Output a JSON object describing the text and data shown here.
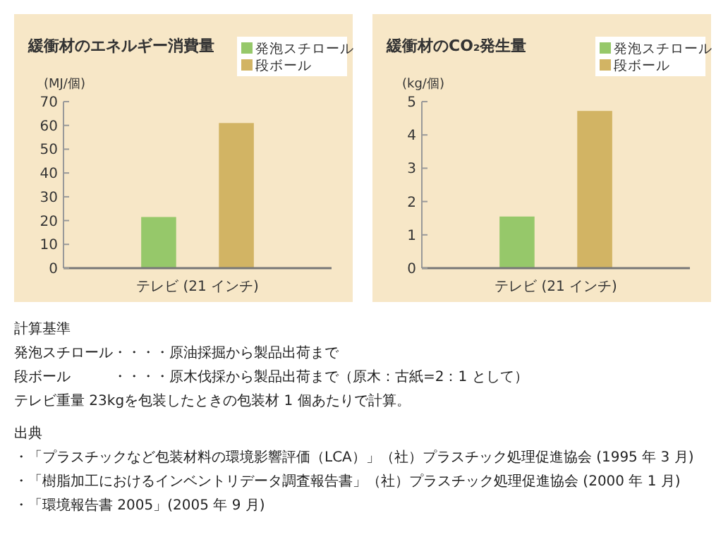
{
  "chart_data": [
    {
      "type": "bar",
      "title": "緩衝材のエネルギー消費量",
      "ylabel": "(MJ/個)",
      "categories": [
        "テレビ (21 インチ)"
      ],
      "series": [
        {
          "name": "発泡スチロール",
          "color": "#96c86a",
          "values": [
            21.5
          ]
        },
        {
          "name": "段ボール",
          "color": "#d2b464",
          "values": [
            61
          ]
        }
      ],
      "ylim": [
        0,
        70
      ],
      "yticks": [
        0,
        10,
        20,
        30,
        40,
        50,
        60,
        70
      ],
      "grid": false,
      "legend": "top right"
    },
    {
      "type": "bar",
      "title": "緩衝材のCO₂発生量",
      "ylabel": "(kg/個)",
      "categories": [
        "テレビ (21 インチ)"
      ],
      "series": [
        {
          "name": "発泡スチロール",
          "color": "#96c86a",
          "values": [
            1.55
          ]
        },
        {
          "name": "段ボール",
          "color": "#d2b464",
          "values": [
            4.72
          ]
        }
      ],
      "ylim": [
        0,
        5
      ],
      "yticks": [
        0,
        1,
        2,
        3,
        4,
        5
      ],
      "grid": false,
      "legend": "top right"
    },
    {
      "type": "other",
      "annotations": [
        "計算基準",
        "発泡スチロール・・・・原油採掘から製品出荷まで",
        "段ボール　　　・・・・原木伐採から製品出荷まで（原木：古紙=2：1 として）",
        "テレビ重量 23kgを包装したときの包装材 1 個あたりで計算。",
        "出典",
        "・「プラスチックなど包装材料の環境影響評価（LCA）」（社）プラスチック処理促進協会 (1995 年 3 月)",
        "・「樹脂加工におけるインベントリデータ調査報告書」（社）プラスチック処理促進協会 (2000 年 1 月)",
        "・「環境報告書 2005」(2005 年 9 月)"
      ]
    }
  ]
}
